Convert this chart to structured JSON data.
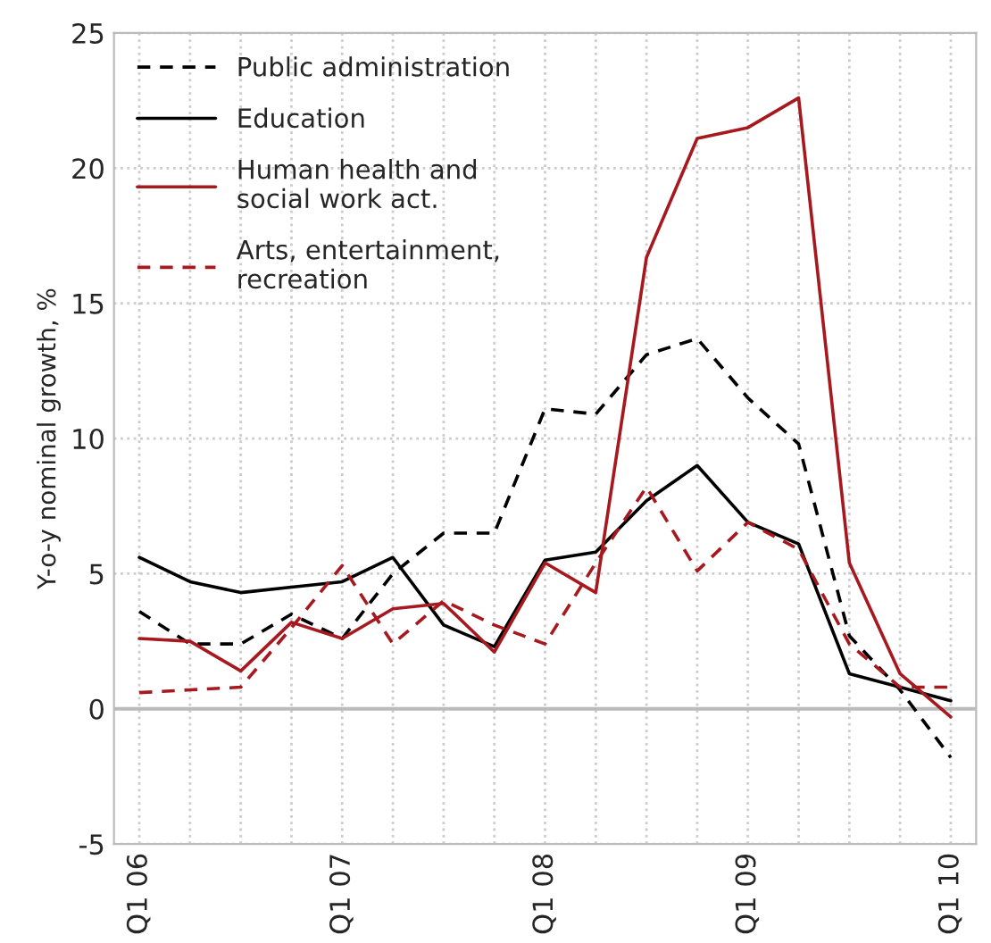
{
  "chart_data": {
    "type": "line",
    "ylabel": "Y-o-y nominal growth, %",
    "categories": [
      "Q1 06",
      null,
      null,
      null,
      "Q1 07",
      null,
      null,
      null,
      "Q1 08",
      null,
      null,
      null,
      "Q1 09",
      null,
      null,
      null,
      "Q1 10"
    ],
    "series": [
      {
        "name": "Public administration",
        "color": "#000000",
        "line_style": "dashed",
        "values": [
          3.6,
          2.4,
          2.4,
          3.5,
          2.6,
          5.0,
          6.5,
          6.5,
          11.1,
          10.9,
          13.1,
          13.7,
          11.5,
          9.8,
          2.7,
          0.7,
          -1.8
        ]
      },
      {
        "name": "Education",
        "color": "#000000",
        "line_style": "solid",
        "values": [
          5.6,
          4.7,
          4.3,
          4.5,
          4.7,
          5.6,
          3.1,
          2.3,
          5.5,
          5.8,
          7.7,
          9.0,
          6.9,
          6.1,
          1.3,
          0.8,
          0.3
        ]
      },
      {
        "name": "Human health and\nsocial work act.",
        "color": "#a6191e",
        "line_style": "solid",
        "values": [
          2.6,
          2.5,
          1.4,
          3.2,
          2.6,
          3.7,
          3.9,
          2.1,
          5.4,
          4.3,
          16.7,
          21.1,
          21.5,
          22.6,
          5.4,
          1.3,
          -0.3
        ]
      },
      {
        "name": "Arts, entertainment,\nrecreation",
        "color": "#a6191e",
        "line_style": "dashed",
        "values": [
          0.6,
          0.7,
          0.8,
          3.0,
          5.3,
          2.4,
          4.0,
          3.1,
          2.4,
          5.4,
          8.2,
          5.1,
          6.9,
          5.9,
          2.4,
          0.8,
          0.8
        ]
      }
    ],
    "ylim": [
      -5,
      25
    ],
    "yticks": [
      -5,
      0,
      5,
      10,
      15,
      20,
      25
    ],
    "ref_lines": [
      {
        "axis": "y",
        "value": 0,
        "color": "#bbbbbb",
        "line_style": "solid"
      }
    ],
    "grid": true,
    "legend": "top left",
    "marker": "none"
  }
}
